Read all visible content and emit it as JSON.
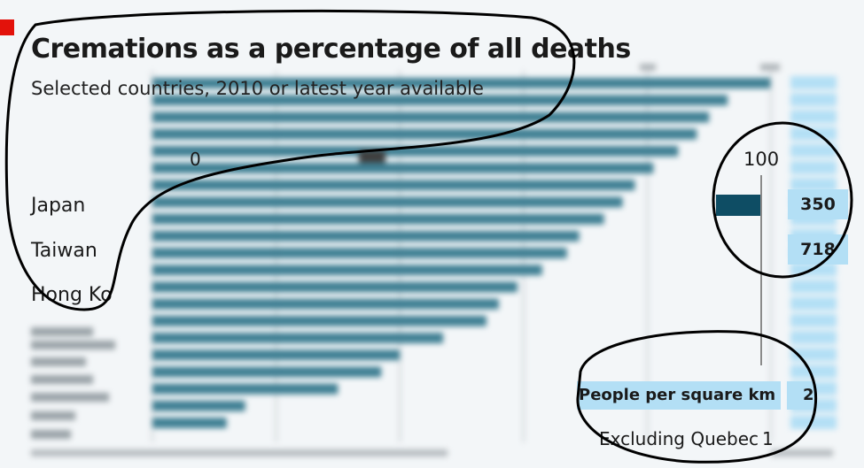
{
  "chart_data": {
    "type": "bar",
    "orientation": "horizontal",
    "title": "Cremations as a percentage of all deaths",
    "subtitle": "Selected countries, 2010 or latest year available",
    "xlim": [
      0,
      100
    ],
    "x_ticks_visible": [
      "0",
      "100"
    ],
    "categories": [
      "Japan",
      "Taiwan",
      "Hong Kong",
      "",
      "",
      "",
      "",
      "",
      "",
      "",
      "",
      "",
      "",
      "",
      "",
      "",
      "",
      "",
      "",
      "",
      ""
    ],
    "values": [
      99.9,
      93,
      90,
      88,
      85,
      81,
      78,
      76,
      73,
      69,
      67,
      63,
      59,
      56,
      54,
      47,
      40,
      37,
      30,
      15,
      12
    ],
    "density_label": "People per square km",
    "density_values": [
      "350",
      "718"
    ],
    "footnote": "Excluding Quebec",
    "colors": {
      "bar": "#3f7f93",
      "bar_highlight": "#0e4d64",
      "density_box": "#b3dff5",
      "brand": "#e3120b"
    },
    "grid": true
  },
  "labels": {
    "title": "Cremations as a percentage of all deaths",
    "subtitle": "Selected countries, 2010 or latest year available",
    "tick_zero": "0",
    "tick_hundred": "100",
    "japan": "Japan",
    "taiwan": "Taiwan",
    "hongkong": "Hong Ko",
    "japan_density": "350",
    "taiwan_density": "718",
    "people": "People per square km",
    "people_value": "2",
    "footnote": "Excluding Quebec",
    "footnote_value": "1"
  }
}
